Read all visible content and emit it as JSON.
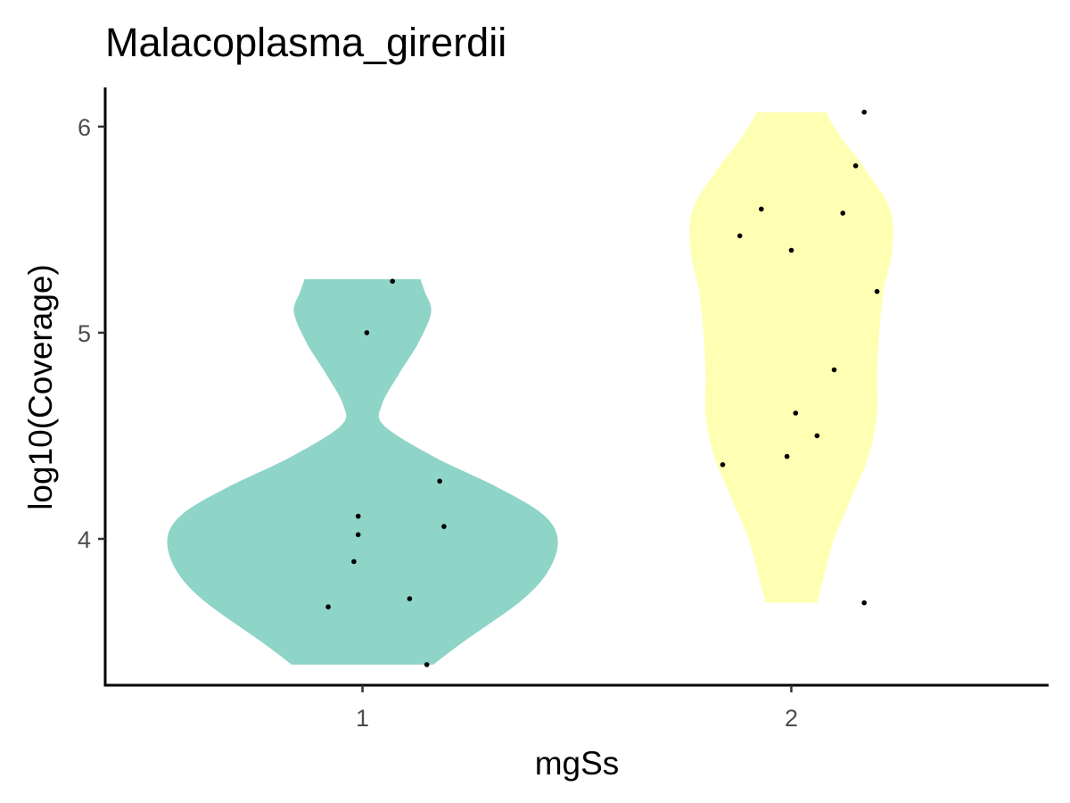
{
  "chart_data": {
    "type": "violin",
    "title": "Malacoplasma_girerdii",
    "xlabel": "mgSs",
    "ylabel": "log10(Coverage)",
    "categories": [
      "1",
      "2"
    ],
    "ylim": [
      3.29,
      6.19
    ],
    "yticks": [
      4,
      5,
      6
    ],
    "grid": false,
    "legend": "none",
    "colors": {
      "1": "#8ED4C7",
      "2": "#FFFFB3"
    },
    "violins": [
      {
        "category": "1",
        "y_range": [
          3.39,
          5.26
        ],
        "density_profile": [
          {
            "y": 3.39,
            "w": 0.33
          },
          {
            "y": 3.5,
            "w": 0.47
          },
          {
            "y": 3.7,
            "w": 0.74
          },
          {
            "y": 3.85,
            "w": 0.87
          },
          {
            "y": 4.0,
            "w": 0.91
          },
          {
            "y": 4.12,
            "w": 0.84
          },
          {
            "y": 4.25,
            "w": 0.63
          },
          {
            "y": 4.4,
            "w": 0.33
          },
          {
            "y": 4.55,
            "w": 0.1
          },
          {
            "y": 4.65,
            "w": 0.09
          },
          {
            "y": 4.8,
            "w": 0.17
          },
          {
            "y": 4.95,
            "w": 0.26
          },
          {
            "y": 5.1,
            "w": 0.32
          },
          {
            "y": 5.2,
            "w": 0.29
          },
          {
            "y": 5.26,
            "w": 0.27
          }
        ]
      },
      {
        "category": "2",
        "y_range": [
          3.69,
          6.07
        ],
        "density_profile": [
          {
            "y": 3.69,
            "w": 0.12
          },
          {
            "y": 3.85,
            "w": 0.16
          },
          {
            "y": 4.0,
            "w": 0.2
          },
          {
            "y": 4.2,
            "w": 0.28
          },
          {
            "y": 4.4,
            "w": 0.36
          },
          {
            "y": 4.6,
            "w": 0.4
          },
          {
            "y": 4.8,
            "w": 0.4
          },
          {
            "y": 5.0,
            "w": 0.41
          },
          {
            "y": 5.2,
            "w": 0.43
          },
          {
            "y": 5.4,
            "w": 0.47
          },
          {
            "y": 5.6,
            "w": 0.46
          },
          {
            "y": 5.8,
            "w": 0.34
          },
          {
            "y": 5.95,
            "w": 0.23
          },
          {
            "y": 6.07,
            "w": 0.16
          }
        ]
      }
    ],
    "points": [
      {
        "category": "1",
        "jitter": -0.08,
        "y": 3.67
      },
      {
        "category": "1",
        "jitter": 0.15,
        "y": 3.39
      },
      {
        "category": "1",
        "jitter": 0.11,
        "y": 3.71
      },
      {
        "category": "1",
        "jitter": -0.02,
        "y": 3.89
      },
      {
        "category": "1",
        "jitter": -0.01,
        "y": 4.02
      },
      {
        "category": "1",
        "jitter": -0.01,
        "y": 4.11
      },
      {
        "category": "1",
        "jitter": 0.19,
        "y": 4.06
      },
      {
        "category": "1",
        "jitter": 0.18,
        "y": 4.28
      },
      {
        "category": "1",
        "jitter": 0.01,
        "y": 5.0
      },
      {
        "category": "1",
        "jitter": 0.07,
        "y": 5.25
      },
      {
        "category": "2",
        "jitter": 0.17,
        "y": 3.69
      },
      {
        "category": "2",
        "jitter": -0.16,
        "y": 4.36
      },
      {
        "category": "2",
        "jitter": -0.01,
        "y": 4.4
      },
      {
        "category": "2",
        "jitter": 0.06,
        "y": 4.5
      },
      {
        "category": "2",
        "jitter": 0.01,
        "y": 4.61
      },
      {
        "category": "2",
        "jitter": 0.1,
        "y": 4.82
      },
      {
        "category": "2",
        "jitter": 0.2,
        "y": 5.2
      },
      {
        "category": "2",
        "jitter": 0.0,
        "y": 5.4
      },
      {
        "category": "2",
        "jitter": -0.12,
        "y": 5.47
      },
      {
        "category": "2",
        "jitter": -0.07,
        "y": 5.6
      },
      {
        "category": "2",
        "jitter": 0.12,
        "y": 5.58
      },
      {
        "category": "2",
        "jitter": 0.15,
        "y": 5.81
      },
      {
        "category": "2",
        "jitter": 0.17,
        "y": 6.07
      }
    ]
  }
}
